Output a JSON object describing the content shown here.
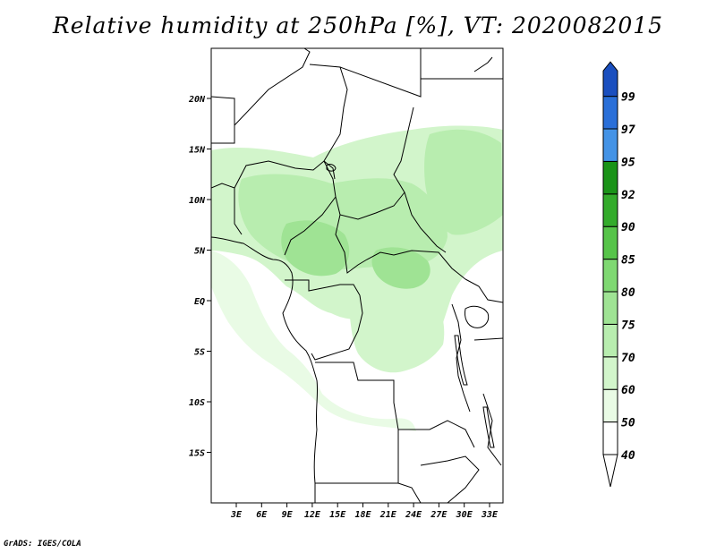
{
  "title": "Relative humidity at 250hPa [%], VT: 2020082015",
  "credit": "GrADS: IGES/COLA",
  "map": {
    "lat_labels": [
      "20N",
      "15N",
      "10N",
      "5N",
      "EQ",
      "5S",
      "10S",
      "15S"
    ],
    "lon_labels": [
      "3E",
      "6E",
      "9E",
      "12E",
      "15E",
      "18E",
      "21E",
      "24E",
      "27E",
      "30E",
      "33E"
    ]
  },
  "legend": {
    "levels": [
      {
        "label": "40",
        "color": "#ffffff"
      },
      {
        "label": "50",
        "color": "#e9fbe5"
      },
      {
        "label": "60",
        "color": "#d2f5cb"
      },
      {
        "label": "70",
        "color": "#b8edaf"
      },
      {
        "label": "75",
        "color": "#9fe394"
      },
      {
        "label": "80",
        "color": "#7fd872"
      },
      {
        "label": "85",
        "color": "#56c449"
      },
      {
        "label": "90",
        "color": "#33ab2b"
      },
      {
        "label": "92",
        "color": "#1a9318"
      },
      {
        "label": "95",
        "color": "#4493e6"
      },
      {
        "label": "97",
        "color": "#2a6fd8"
      },
      {
        "label": "99",
        "color": "#1a4fbf"
      }
    ]
  },
  "colors": {
    "frame": "#000000",
    "background": "#ffffff"
  }
}
